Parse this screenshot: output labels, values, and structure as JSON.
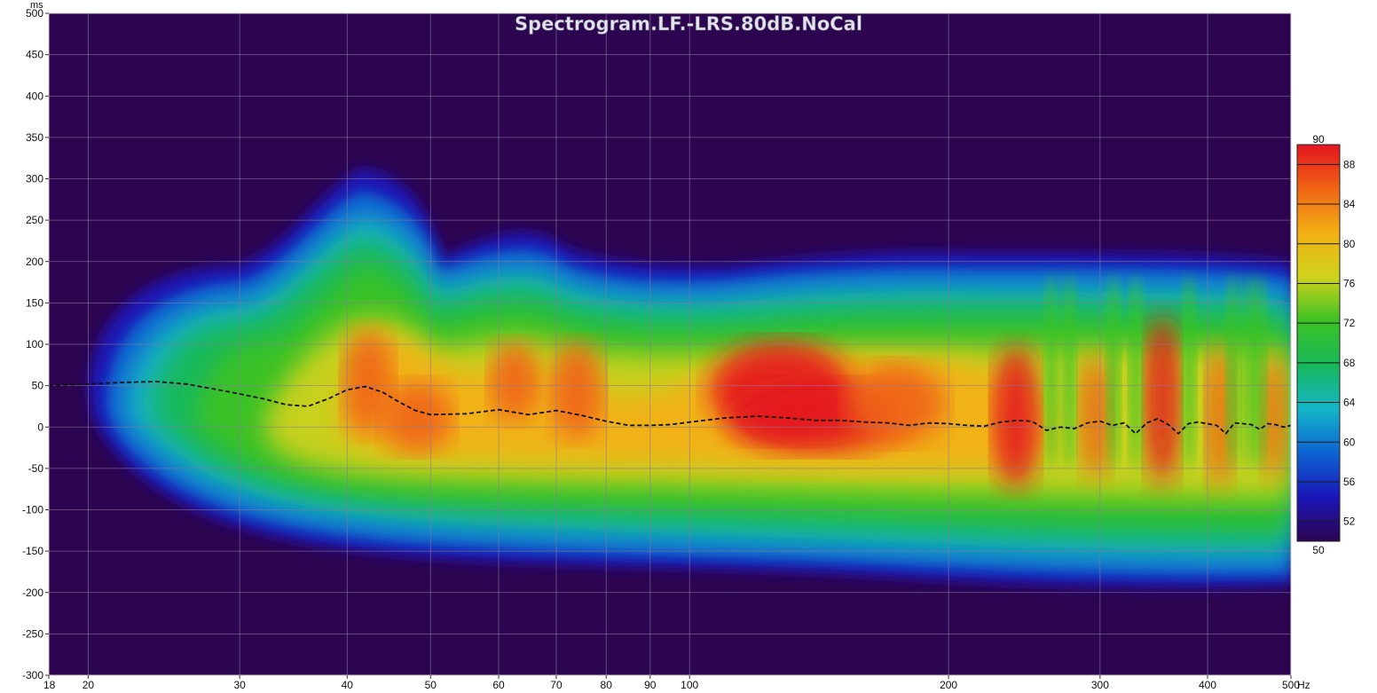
{
  "chart_data": {
    "type": "heatmap",
    "title": "Spectrogram.LF.-LRS.80dB.NoCal",
    "x_unit": "Hz",
    "y_unit": "ms",
    "x_scale": "log",
    "xlim": [
      18,
      500
    ],
    "ylim": [
      -300,
      500
    ],
    "x_ticks": [
      18,
      20,
      30,
      40,
      50,
      60,
      70,
      80,
      90,
      100,
      200,
      300,
      400,
      500
    ],
    "x_tick_labels": [
      "18",
      "20",
      "30",
      "40",
      "50",
      "60",
      "70",
      "80",
      "90",
      "100",
      "200",
      "300",
      "400",
      "500"
    ],
    "y_ticks": [
      500,
      450,
      400,
      350,
      300,
      250,
      200,
      150,
      100,
      50,
      0,
      -50,
      -100,
      -150,
      -200,
      -250,
      -300
    ],
    "y_tick_labels": [
      "500",
      "450",
      "400",
      "350",
      "300",
      "250",
      "200",
      "150",
      "100",
      "50",
      "0",
      "-50",
      "-100",
      "-150",
      "-200",
      "-250",
      "-300"
    ],
    "grid": true,
    "colorbar": {
      "min": 50,
      "max": 90,
      "min_label": "50",
      "max_label": "90",
      "ticks": [
        88,
        84,
        80,
        76,
        72,
        68,
        64,
        60,
        56,
        52
      ],
      "tick_labels": [
        "88",
        "84",
        "80",
        "76",
        "72",
        "68",
        "64",
        "60",
        "56",
        "52"
      ],
      "placement": "right",
      "stops": [
        "#2c0450",
        "#1a16b8",
        "#0d63d2",
        "#14b5c8",
        "#18b85a",
        "#3cc224",
        "#cfd21a",
        "#f2b014",
        "#f06414",
        "#e4141e"
      ]
    },
    "colors": {
      "background": "#2c0450",
      "grid": "#8a7a9e",
      "peak_curve": "#111111"
    },
    "peak_energy_curve": {
      "style": "dashed",
      "x": [
        18,
        20,
        22,
        24,
        26,
        28,
        30,
        32,
        34,
        36,
        38,
        40,
        42,
        44,
        46,
        48,
        50,
        55,
        60,
        65,
        70,
        75,
        80,
        85,
        90,
        95,
        100,
        110,
        120,
        130,
        140,
        150,
        160,
        170,
        180,
        190,
        200,
        210,
        220,
        230,
        240,
        250,
        260,
        270,
        280,
        290,
        300,
        310,
        320,
        330,
        340,
        350,
        360,
        370,
        380,
        390,
        400,
        410,
        420,
        430,
        440,
        450,
        460,
        470,
        480,
        490,
        500
      ],
      "y": [
        50,
        52,
        54,
        55,
        52,
        46,
        40,
        34,
        27,
        25,
        34,
        45,
        49,
        42,
        30,
        20,
        15,
        16,
        21,
        15,
        20,
        14,
        7,
        2,
        2,
        3,
        6,
        11,
        13,
        11,
        8,
        8,
        6,
        5,
        2,
        5,
        4,
        2,
        1,
        6,
        8,
        7,
        -4,
        0,
        -2,
        5,
        7,
        2,
        5,
        -8,
        5,
        10,
        3,
        -8,
        4,
        6,
        4,
        2,
        -8,
        5,
        4,
        3,
        -3,
        4,
        3,
        0,
        2
      ]
    }
  }
}
